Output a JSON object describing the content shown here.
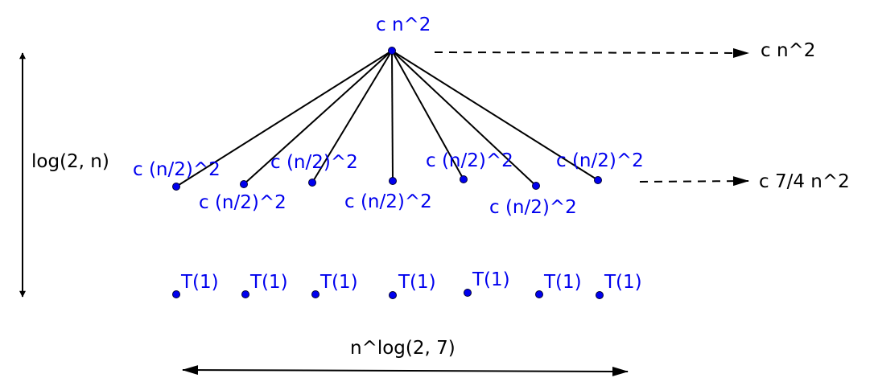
{
  "root": {
    "label": "c n^2"
  },
  "children": [
    {
      "label": "c (n/2)^2"
    },
    {
      "label": "c (n/2)^2"
    },
    {
      "label": "c (n/2)^2"
    },
    {
      "label": "c (n/2)^2"
    },
    {
      "label": "c (n/2)^2"
    },
    {
      "label": "c (n/2)^2"
    },
    {
      "label": "c (n/2)^2"
    }
  ],
  "leaves": [
    {
      "label": "T(1)"
    },
    {
      "label": "T(1)"
    },
    {
      "label": "T(1)"
    },
    {
      "label": "T(1)"
    },
    {
      "label": "T(1)"
    },
    {
      "label": "T(1)"
    },
    {
      "label": "T(1)"
    }
  ],
  "level_costs": {
    "root": "c n^2",
    "children": "c 7/4 n^2"
  },
  "height_label": "log(2, n)",
  "width_label": "n^log(2, 7)",
  "colors": {
    "node": "#0000ee",
    "text_node": "#0000ee",
    "text_annotation": "#000000",
    "edge": "#000000"
  }
}
